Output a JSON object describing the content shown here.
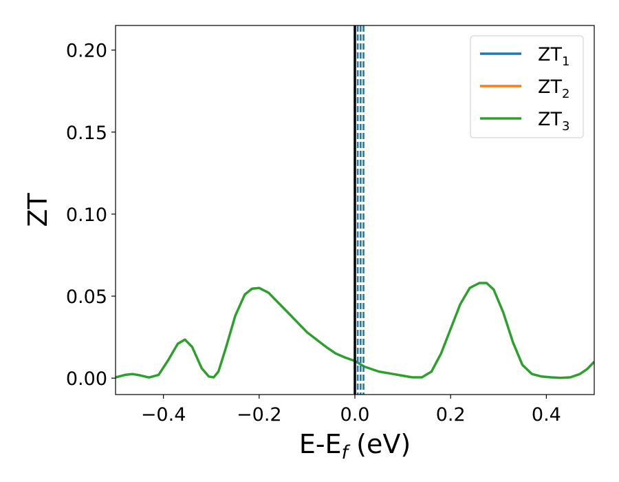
{
  "chart_data": {
    "type": "line",
    "xlabel": "E-E",
    "xlabel_sub": "f",
    "xlabel_unit": " (eV)",
    "ylabel": "ZT",
    "xlim": [
      -0.5,
      0.5
    ],
    "ylim": [
      -0.01,
      0.215
    ],
    "xticks": [
      -0.4,
      -0.2,
      0.0,
      0.2,
      0.4
    ],
    "xtick_labels": [
      "−0.4",
      "−0.2",
      "0.0",
      "0.2",
      "0.4"
    ],
    "yticks": [
      0.0,
      0.05,
      0.1,
      0.15,
      0.2
    ],
    "ytick_labels": [
      "0.00",
      "0.05",
      "0.10",
      "0.15",
      "0.20"
    ],
    "grid": false,
    "legend_position": "top-right",
    "fermi_line": {
      "x": 0.0,
      "color": "#000000"
    },
    "dashed_lines": {
      "x": [
        0.006,
        0.012,
        0.018
      ],
      "color": "#1f77b4"
    },
    "series": [
      {
        "name": "ZT",
        "sub": "1",
        "color": "#1f77b4",
        "values": null
      },
      {
        "name": "ZT",
        "sub": "2",
        "color": "#ff7f0e",
        "values": null
      },
      {
        "name": "ZT",
        "sub": "3",
        "color": "#2ca02c",
        "x": [
          -0.5,
          -0.48,
          -0.465,
          -0.45,
          -0.43,
          -0.41,
          -0.39,
          -0.37,
          -0.355,
          -0.34,
          -0.32,
          -0.305,
          -0.295,
          -0.285,
          -0.27,
          -0.25,
          -0.23,
          -0.215,
          -0.2,
          -0.18,
          -0.16,
          -0.14,
          -0.12,
          -0.1,
          -0.08,
          -0.06,
          -0.04,
          -0.02,
          0.0,
          0.02,
          0.05,
          0.08,
          0.1,
          0.12,
          0.14,
          0.16,
          0.18,
          0.2,
          0.22,
          0.24,
          0.26,
          0.275,
          0.29,
          0.31,
          0.33,
          0.35,
          0.37,
          0.39,
          0.41,
          0.43,
          0.45,
          0.47,
          0.485,
          0.5
        ],
        "y": [
          0.0005,
          0.002,
          0.0025,
          0.0018,
          0.0004,
          0.002,
          0.011,
          0.021,
          0.0235,
          0.019,
          0.006,
          0.001,
          0.0005,
          0.004,
          0.018,
          0.038,
          0.051,
          0.0545,
          0.055,
          0.052,
          0.046,
          0.04,
          0.034,
          0.028,
          0.0235,
          0.019,
          0.015,
          0.0125,
          0.0105,
          0.007,
          0.004,
          0.0025,
          0.0015,
          0.0005,
          0.0005,
          0.004,
          0.015,
          0.03,
          0.045,
          0.055,
          0.058,
          0.058,
          0.054,
          0.04,
          0.022,
          0.008,
          0.0025,
          0.001,
          0.0005,
          0.0002,
          0.0005,
          0.0025,
          0.0055,
          0.01
        ]
      }
    ]
  }
}
